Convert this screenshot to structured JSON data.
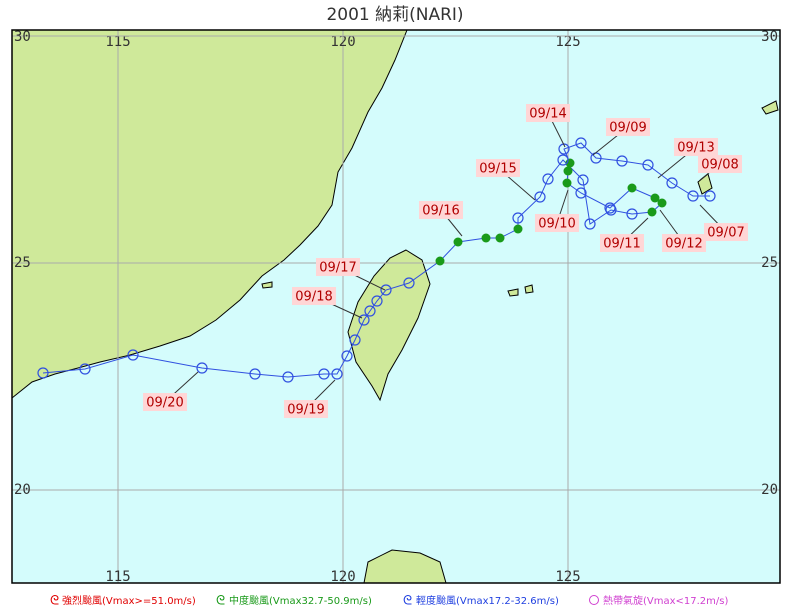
{
  "header": {
    "title": "2001 納莉(NARI)"
  },
  "map": {
    "lon_ticks": [
      115,
      120,
      125
    ],
    "lat_ticks": [
      30,
      25,
      20
    ]
  },
  "date_labels": [
    "09/14",
    "09/09",
    "09/13",
    "09/08",
    "09/15",
    "09/10",
    "09/07",
    "09/16",
    "09/11",
    "09/12",
    "09/17",
    "09/18",
    "09/20",
    "09/19"
  ],
  "legend": [
    "強烈颱風(Vmax>=51.0m/s)",
    "中度颱風(Vmax32.7-50.9m/s)",
    "輕度颱風(Vmax17.2-32.6m/s)",
    "熱帶氣旋(Vmax<17.2m/s)"
  ]
}
